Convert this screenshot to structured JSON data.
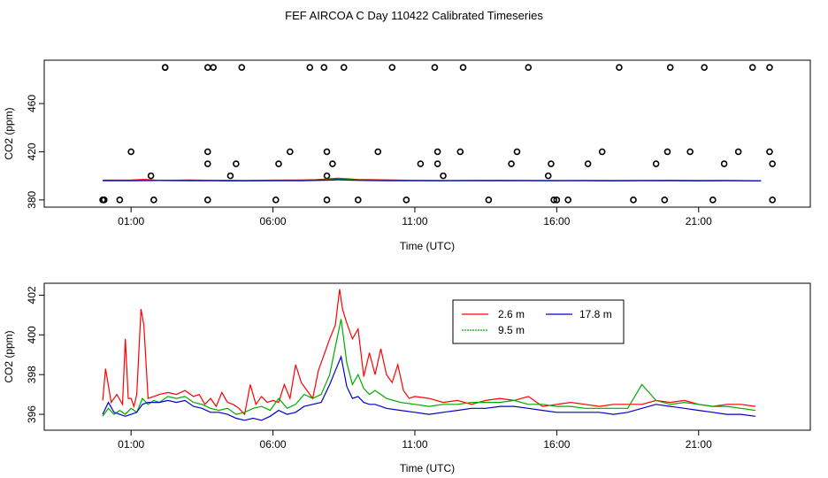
{
  "title": "FEF AIRCOA C  Day 110422  Calibrated Timeseries",
  "chart_data": [
    {
      "type": "scatter",
      "xlabel": "Time (UTC)",
      "ylabel": "CO2 (ppm)",
      "x_ticks": [
        1,
        6,
        11,
        16,
        21
      ],
      "x_tick_labels": [
        "01:00",
        "06:00",
        "11:00",
        "16:00",
        "21:00"
      ],
      "xlim": [
        -1.0,
        24.0
      ],
      "ylim": [
        374,
        496
      ],
      "y_ticks": [
        380,
        420,
        460
      ],
      "y_tick_labels": [
        "380",
        "420",
        "460"
      ],
      "grid": false,
      "series": [
        {
          "marker": "open-circle",
          "x": [
            0.0,
            0.05,
            0.05,
            0.6,
            1.0,
            1.8,
            1.7,
            2.2,
            2.2,
            3.7,
            3.7,
            3.7,
            3.7,
            3.9,
            4.5,
            4.7,
            4.9,
            6.1,
            6.2,
            6.6,
            7.3,
            7.8,
            7.9,
            7.9,
            7.9,
            8.1,
            8.5,
            9.0,
            9.7,
            10.2,
            10.7,
            11.2,
            11.7,
            11.8,
            11.8,
            12.0,
            12.6,
            12.7,
            13.6,
            14.4,
            14.6,
            15.0,
            15.7,
            15.8,
            15.9,
            16.0,
            16.4,
            17.1,
            17.6,
            18.2,
            18.7,
            19.5,
            19.8,
            19.9,
            20.0,
            20.7,
            21.2,
            21.5,
            21.9,
            22.4,
            22.9,
            23.5,
            23.5,
            23.6,
            23.6
          ],
          "y": [
            380,
            380,
            380,
            380,
            420,
            380,
            400,
            490,
            490,
            490,
            420,
            380,
            410,
            490,
            400,
            410,
            490,
            380,
            410,
            420,
            490,
            490,
            420,
            400,
            380,
            410,
            490,
            380,
            420,
            490,
            380,
            410,
            490,
            420,
            410,
            400,
            420,
            490,
            380,
            410,
            420,
            490,
            400,
            410,
            380,
            380,
            380,
            410,
            420,
            490,
            380,
            410,
            380,
            420,
            490,
            420,
            490,
            380,
            410,
            420,
            490,
            490,
            420,
            410,
            380
          ],
          "y_note": "markers drawn at approximate band levels"
        },
        {
          "name": "2.6 m",
          "color": "#ff0000",
          "type": "line",
          "x": [
            0,
            1,
            1.5,
            2,
            3,
            4,
            5,
            6,
            7,
            7.5,
            8,
            8.3,
            8.6,
            9,
            10,
            11,
            12,
            13,
            14,
            15,
            16,
            17,
            18,
            19,
            20,
            21,
            22,
            23,
            23.2
          ],
          "y": [
            396.4,
            396.5,
            397,
            396.2,
            396.5,
            396.3,
            396.2,
            396.4,
            396.5,
            396.8,
            397.5,
            398,
            397.5,
            397,
            396.6,
            396.3,
            396.1,
            396.2,
            396.3,
            396.2,
            396.1,
            396.2,
            396.1,
            396.2,
            396.3,
            396.1,
            396.2,
            396.0,
            396.0
          ]
        },
        {
          "name": "9.5 m",
          "color": "#00aa00",
          "type": "line",
          "x": [
            0,
            1,
            2,
            3,
            4,
            5,
            6,
            7,
            8,
            8.3,
            9,
            10,
            11,
            12,
            13,
            14,
            15,
            16,
            17,
            18,
            19,
            20,
            21,
            22,
            23,
            23.2
          ],
          "y": [
            396.2,
            396.1,
            396.3,
            396.2,
            396.1,
            396.0,
            396.2,
            396.3,
            396.8,
            397.2,
            396.6,
            396.3,
            396.1,
            396.0,
            396.1,
            396.2,
            396.1,
            396.0,
            396.1,
            396.0,
            396.1,
            396.2,
            396.0,
            396.1,
            395.9,
            395.9
          ]
        },
        {
          "name": "17.8 m",
          "color": "#0000cc",
          "type": "line",
          "x": [
            0,
            1,
            2,
            3,
            4,
            5,
            6,
            7,
            8,
            8.3,
            9,
            10,
            11,
            12,
            13,
            14,
            15,
            16,
            17,
            18,
            19,
            20,
            21,
            22,
            23,
            23.2
          ],
          "y": [
            396.0,
            396.0,
            396.1,
            396.0,
            395.9,
            395.8,
            395.9,
            396.0,
            396.4,
            396.7,
            396.2,
            396.0,
            395.9,
            395.9,
            396.0,
            396.0,
            395.9,
            395.9,
            395.9,
            395.8,
            395.9,
            396.0,
            395.8,
            395.9,
            395.8,
            395.8
          ]
        }
      ]
    },
    {
      "type": "line",
      "xlabel": "Time (UTC)",
      "ylabel": "CO2 (ppm)",
      "x_ticks": [
        1,
        6,
        11,
        16,
        21
      ],
      "x_tick_labels": [
        "01:00",
        "06:00",
        "11:00",
        "16:00",
        "21:00"
      ],
      "xlim": [
        -1.0,
        24.0
      ],
      "ylim": [
        395.2,
        402.6
      ],
      "y_ticks": [
        396,
        398,
        400,
        402
      ],
      "y_tick_labels": [
        "396",
        "398",
        "400",
        "402"
      ],
      "grid": false,
      "legend": {
        "placement": "top-center",
        "entries": [
          "2.6 m",
          "17.8 m",
          "9.5 m"
        ]
      },
      "series": [
        {
          "name": "2.6 m",
          "color": "#ff0000",
          "x": [
            0,
            0.1,
            0.3,
            0.5,
            0.7,
            0.8,
            0.9,
            1.0,
            1.1,
            1.2,
            1.35,
            1.45,
            1.6,
            1.8,
            2.0,
            2.3,
            2.6,
            2.9,
            3.2,
            3.4,
            3.6,
            3.8,
            4.0,
            4.2,
            4.4,
            4.6,
            4.8,
            5.0,
            5.2,
            5.4,
            5.6,
            5.8,
            6.0,
            6.2,
            6.4,
            6.6,
            6.8,
            7.0,
            7.2,
            7.4,
            7.6,
            7.8,
            8.0,
            8.2,
            8.35,
            8.45,
            8.6,
            8.8,
            9.0,
            9.2,
            9.4,
            9.6,
            9.8,
            10.0,
            10.2,
            10.4,
            10.6,
            10.8,
            11.0,
            11.5,
            12.0,
            12.5,
            13.0,
            13.5,
            14.0,
            14.5,
            15.0,
            15.5,
            16.0,
            16.5,
            17.0,
            17.5,
            18.0,
            18.5,
            19.0,
            19.5,
            20.0,
            20.5,
            21.0,
            21.5,
            22.0,
            22.5,
            23.0
          ],
          "y": [
            396.7,
            398.3,
            396.6,
            397.0,
            396.5,
            399.8,
            396.8,
            396.8,
            396.4,
            397.0,
            401.3,
            400.5,
            396.8,
            396.9,
            397.0,
            397.1,
            397.0,
            397.2,
            396.9,
            397.0,
            396.5,
            396.8,
            396.4,
            397.1,
            396.6,
            396.5,
            396.3,
            396.0,
            397.5,
            396.5,
            396.9,
            396.6,
            396.7,
            396.6,
            397.5,
            396.8,
            398.5,
            397.6,
            397.2,
            396.8,
            398.2,
            399.0,
            399.8,
            400.5,
            402.3,
            401.3,
            400.6,
            399.8,
            400.3,
            397.9,
            399.1,
            398.0,
            399.3,
            398.0,
            397.6,
            398.5,
            397.2,
            396.8,
            396.9,
            396.8,
            396.6,
            396.7,
            396.5,
            396.7,
            396.8,
            396.7,
            396.9,
            396.4,
            396.5,
            396.6,
            396.5,
            396.4,
            396.5,
            396.5,
            396.5,
            396.7,
            396.6,
            396.7,
            396.5,
            396.4,
            396.5,
            396.5,
            396.4
          ]
        },
        {
          "name": "9.5 m",
          "color": "#00aa00",
          "x": [
            0,
            0.2,
            0.4,
            0.6,
            0.8,
            1.0,
            1.2,
            1.4,
            1.6,
            1.8,
            2.0,
            2.3,
            2.6,
            2.9,
            3.2,
            3.5,
            3.8,
            4.1,
            4.4,
            4.7,
            5.0,
            5.3,
            5.6,
            5.9,
            6.2,
            6.5,
            6.8,
            7.1,
            7.4,
            7.7,
            8.0,
            8.2,
            8.4,
            8.6,
            8.8,
            9.0,
            9.2,
            9.4,
            9.6,
            9.8,
            10.0,
            10.5,
            11.0,
            11.5,
            12.0,
            12.5,
            13.0,
            13.5,
            14.0,
            14.5,
            15.0,
            15.5,
            16.0,
            16.5,
            17.0,
            17.5,
            18.0,
            18.5,
            19.0,
            19.5,
            20.0,
            20.5,
            21.0,
            21.5,
            22.0,
            22.5,
            23.0
          ],
          "y": [
            395.9,
            396.3,
            396.0,
            396.2,
            396.0,
            396.3,
            396.1,
            396.8,
            396.5,
            396.7,
            396.6,
            396.9,
            396.8,
            396.9,
            396.6,
            396.5,
            396.3,
            396.2,
            396.3,
            396.0,
            396.1,
            396.3,
            396.4,
            396.2,
            396.8,
            396.3,
            396.5,
            397.0,
            396.8,
            397.0,
            398.0,
            399.4,
            400.8,
            398.6,
            397.5,
            398.0,
            397.3,
            397.0,
            397.2,
            397.0,
            396.8,
            396.6,
            396.5,
            396.4,
            396.5,
            396.5,
            396.6,
            396.6,
            396.6,
            396.7,
            396.5,
            396.5,
            396.4,
            396.4,
            396.3,
            396.3,
            396.3,
            396.3,
            397.5,
            396.7,
            396.5,
            396.6,
            396.5,
            396.4,
            396.4,
            396.3,
            396.2
          ]
        },
        {
          "name": "17.8 m",
          "color": "#0000cc",
          "x": [
            0,
            0.2,
            0.4,
            0.6,
            0.8,
            1.0,
            1.2,
            1.4,
            1.6,
            1.8,
            2.0,
            2.3,
            2.6,
            2.9,
            3.2,
            3.5,
            3.8,
            4.1,
            4.4,
            4.7,
            5.0,
            5.3,
            5.6,
            5.9,
            6.2,
            6.5,
            6.8,
            7.1,
            7.4,
            7.7,
            8.0,
            8.2,
            8.4,
            8.6,
            8.8,
            9.0,
            9.2,
            9.4,
            9.6,
            9.8,
            10.0,
            10.5,
            11.0,
            11.5,
            12.0,
            12.5,
            13.0,
            13.5,
            14.0,
            14.5,
            15.0,
            15.5,
            16.0,
            16.5,
            17.0,
            17.5,
            18.0,
            18.5,
            19.0,
            19.5,
            20.0,
            20.5,
            21.0,
            21.5,
            22.0,
            22.5,
            23.0
          ],
          "y": [
            396.0,
            396.6,
            396.1,
            396.0,
            395.9,
            396.0,
            396.1,
            396.5,
            396.6,
            396.6,
            396.6,
            396.7,
            396.6,
            396.7,
            396.4,
            396.3,
            396.1,
            396.1,
            396.0,
            395.8,
            395.7,
            395.8,
            395.7,
            395.9,
            396.2,
            396.0,
            396.1,
            396.4,
            396.5,
            396.6,
            397.5,
            398.2,
            398.9,
            397.4,
            396.8,
            396.9,
            396.6,
            396.5,
            396.5,
            396.4,
            396.3,
            396.2,
            396.1,
            396.0,
            396.1,
            396.2,
            396.3,
            396.3,
            396.4,
            396.4,
            396.3,
            396.2,
            396.1,
            396.1,
            396.1,
            396.1,
            396.0,
            396.1,
            396.3,
            396.5,
            396.4,
            396.3,
            396.2,
            396.1,
            396.0,
            396.0,
            395.9
          ]
        }
      ]
    }
  ]
}
